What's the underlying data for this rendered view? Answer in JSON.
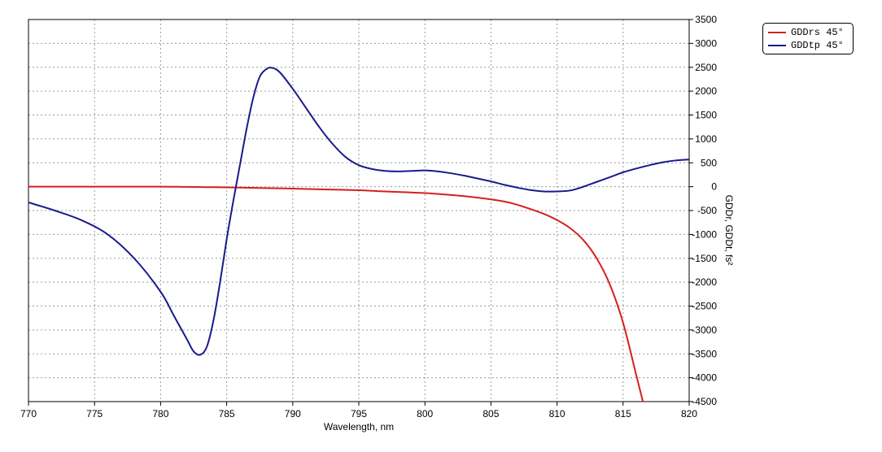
{
  "chart_data": {
    "type": "line",
    "xlabel": "Wavelength, nm",
    "ylabel": "GDDr, GDDt, fs²",
    "xlim": [
      770,
      820
    ],
    "ylim": [
      -4500,
      3500
    ],
    "x_ticks": [
      770,
      775,
      780,
      785,
      790,
      795,
      800,
      805,
      810,
      815,
      820
    ],
    "y_ticks": [
      3500,
      3000,
      2500,
      2000,
      1500,
      1000,
      500,
      0,
      -500,
      -1000,
      -1500,
      -2000,
      -2500,
      -3000,
      -3500,
      -4000,
      -4500
    ],
    "grid": true,
    "legend_position": "top-right, outside plot",
    "series": [
      {
        "name": "GDDrs 45°",
        "color": "#d42020",
        "x": [
          770,
          775,
          780,
          782,
          785,
          788,
          790,
          792,
          795,
          797,
          800,
          802,
          804,
          806,
          807,
          808,
          809,
          810,
          811,
          812,
          813,
          814,
          815,
          816,
          816.5
        ],
        "y": [
          0,
          0,
          0,
          -5,
          -15,
          -30,
          -40,
          -55,
          -75,
          -100,
          -135,
          -175,
          -230,
          -310,
          -380,
          -470,
          -570,
          -700,
          -870,
          -1120,
          -1500,
          -2050,
          -2850,
          -3950,
          -4500
        ]
      },
      {
        "name": "GDDtp 45°",
        "color": "#1a1a8c",
        "x": [
          770,
          772,
          774,
          776,
          778,
          780,
          781,
          782,
          782.5,
          783,
          783.5,
          784,
          784.5,
          785,
          785.5,
          786,
          786.5,
          787,
          787.5,
          788,
          788.4,
          789,
          790,
          791,
          792,
          793,
          794,
          795,
          796,
          797,
          798,
          799,
          800,
          801,
          802,
          803,
          804,
          805,
          806,
          807,
          808,
          809,
          810,
          811,
          812,
          813,
          814,
          815,
          816,
          817,
          818,
          819,
          820
        ],
        "y": [
          -330,
          -500,
          -700,
          -1000,
          -1500,
          -2200,
          -2700,
          -3200,
          -3450,
          -3520,
          -3350,
          -2800,
          -2000,
          -1100,
          -300,
          450,
          1200,
          1850,
          2300,
          2460,
          2490,
          2400,
          2050,
          1650,
          1250,
          900,
          620,
          450,
          370,
          330,
          320,
          330,
          340,
          320,
          280,
          230,
          170,
          110,
          40,
          -20,
          -70,
          -100,
          -100,
          -80,
          0,
          100,
          200,
          300,
          380,
          450,
          510,
          550,
          570
        ]
      }
    ]
  }
}
